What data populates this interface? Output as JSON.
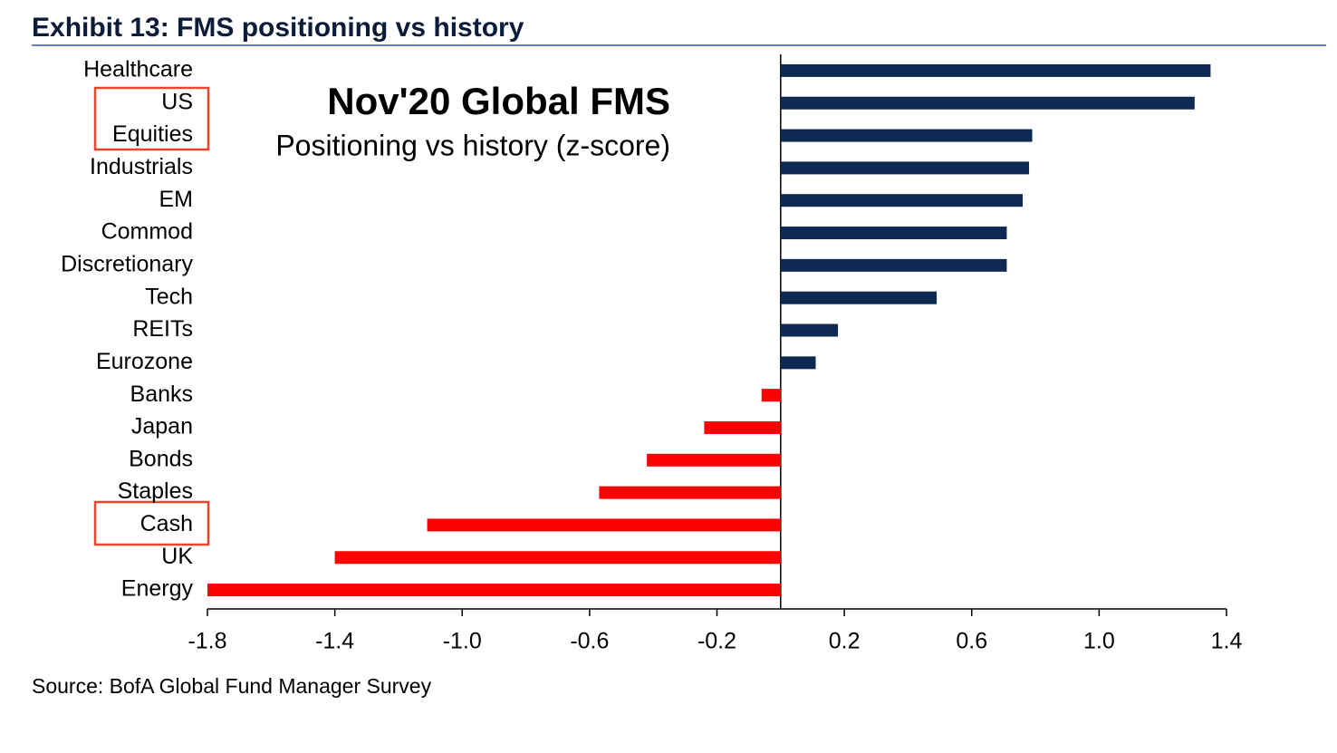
{
  "chart_data": {
    "type": "barh",
    "title": "Exhibit 13: FMS positioning vs history",
    "plot_title": "Nov'20 Global FMS",
    "subtitle": "Positioning vs history (z-score)",
    "source": "Source: BofA Global Fund Manager Survey",
    "categories": [
      "Healthcare",
      "US",
      "Equities",
      "Industrials",
      "EM",
      "Commod",
      "Discretionary",
      "Tech",
      "REITs",
      "Eurozone",
      "Banks",
      "Japan",
      "Bonds",
      "Staples",
      "Cash",
      "UK",
      "Energy"
    ],
    "values": [
      1.35,
      1.3,
      0.79,
      0.78,
      0.76,
      0.71,
      0.71,
      0.49,
      0.18,
      0.11,
      -0.06,
      -0.24,
      -0.42,
      -0.57,
      -1.11,
      -1.4,
      -1.8
    ],
    "positive_color": "#0f2a52",
    "negative_color": "#ff0000",
    "xlim": [
      -1.8,
      1.4
    ],
    "xticks": [
      -1.8,
      -1.4,
      {
        "value": -1,
        "label": "-1.0"
      },
      -0.6,
      -0.2,
      0.2,
      0.6,
      {
        "value": 1,
        "label": "1.0"
      },
      1.4
    ],
    "grid": false
  }
}
